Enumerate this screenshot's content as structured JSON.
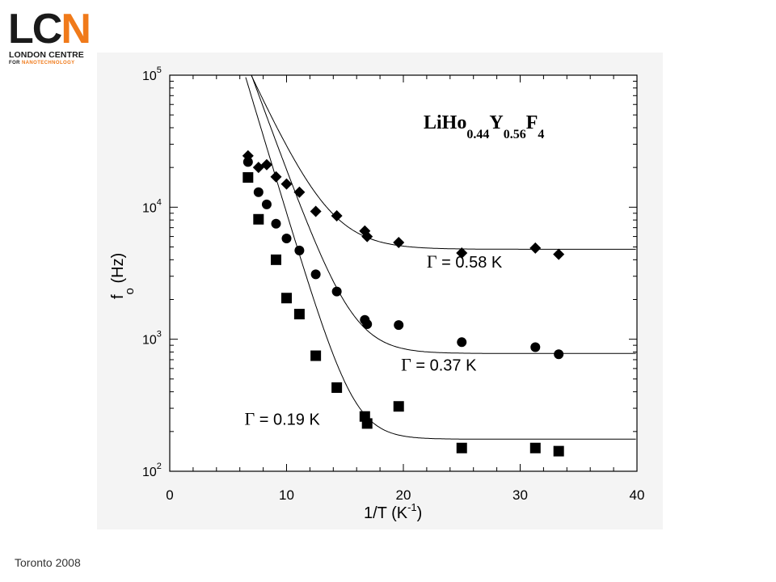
{
  "logo": {
    "letters_dark": "LC",
    "letter_accent": "N",
    "line1": "LONDON CENTRE",
    "line2_prefix": "FOR",
    "line2_highlight": "NANOTECHNOLOGY",
    "accent_color": "#f07a1a"
  },
  "footer": {
    "text": "Toronto 2008"
  },
  "chart_data": {
    "type": "scatter",
    "title": {
      "base": "LiHo",
      "sub1": "0.44",
      "mid": "Y",
      "sub2": "0.56",
      "end": "F",
      "sub3": "4"
    },
    "xlabel": {
      "base": "1/T (K",
      "sup": "-1",
      "end": ")"
    },
    "ylabel": {
      "base": "f",
      "sub": "o",
      "end": " (Hz)"
    },
    "xlim": [
      0,
      40
    ],
    "ylim": [
      100,
      100000
    ],
    "yscale": "log",
    "x_ticks": [
      "0",
      "10",
      "20",
      "30",
      "40"
    ],
    "y_ticks": [
      {
        "base": "10",
        "exp": "2"
      },
      {
        "base": "10",
        "exp": "3"
      },
      {
        "base": "10",
        "exp": "4"
      },
      {
        "base": "10",
        "exp": "5"
      }
    ],
    "grid": false,
    "series": [
      {
        "name": "Γ = 0.58 K",
        "marker": "diamond",
        "gamma": 0.58,
        "x": [
          6.7,
          7.6,
          8.3,
          9.1,
          10.0,
          11.1,
          12.5,
          14.3,
          16.7,
          16.9,
          19.6,
          25.0,
          31.3,
          33.3
        ],
        "y": [
          24500,
          20000,
          21000,
          17000,
          15000,
          13000,
          9300,
          8600,
          6600,
          6000,
          5400,
          4500,
          4900,
          4400
        ]
      },
      {
        "name": "Γ = 0.37 K",
        "marker": "circle",
        "gamma": 0.37,
        "x": [
          6.7,
          7.6,
          8.3,
          9.1,
          10.0,
          11.1,
          12.5,
          14.3,
          16.7,
          16.9,
          19.6,
          25.0,
          31.3,
          33.3
        ],
        "y": [
          22000,
          13000,
          10500,
          7500,
          5800,
          4700,
          3100,
          2300,
          1400,
          1300,
          1280,
          950,
          870,
          770
        ]
      },
      {
        "name": "Γ = 0.19 K",
        "marker": "square",
        "gamma": 0.19,
        "x": [
          6.7,
          7.6,
          9.1,
          10.0,
          11.1,
          12.5,
          14.3,
          16.7,
          16.9,
          19.6,
          25.0,
          31.3,
          33.3
        ],
        "y": [
          16800,
          8100,
          4000,
          2050,
          1550,
          750,
          430,
          260,
          230,
          310,
          150,
          150,
          142
        ]
      }
    ],
    "fits": [
      {
        "A": 2200000.0,
        "Ea": 0.45,
        "plateau": 4800
      },
      {
        "A": 5000000.0,
        "Ea": 0.56,
        "plateau": 780
      },
      {
        "A": 8000000.0,
        "Ea": 0.68,
        "plateau": 175
      }
    ],
    "annotations": [
      {
        "symbol": "Γ",
        "text": " = 0.58 K",
        "at": [
          22,
          3500
        ]
      },
      {
        "symbol": "Γ",
        "text": " = 0.37 K",
        "at": [
          19.8,
          580
        ]
      },
      {
        "symbol": "Γ",
        "text": " = 0.19 K",
        "at": [
          6.4,
          225
        ]
      }
    ]
  }
}
